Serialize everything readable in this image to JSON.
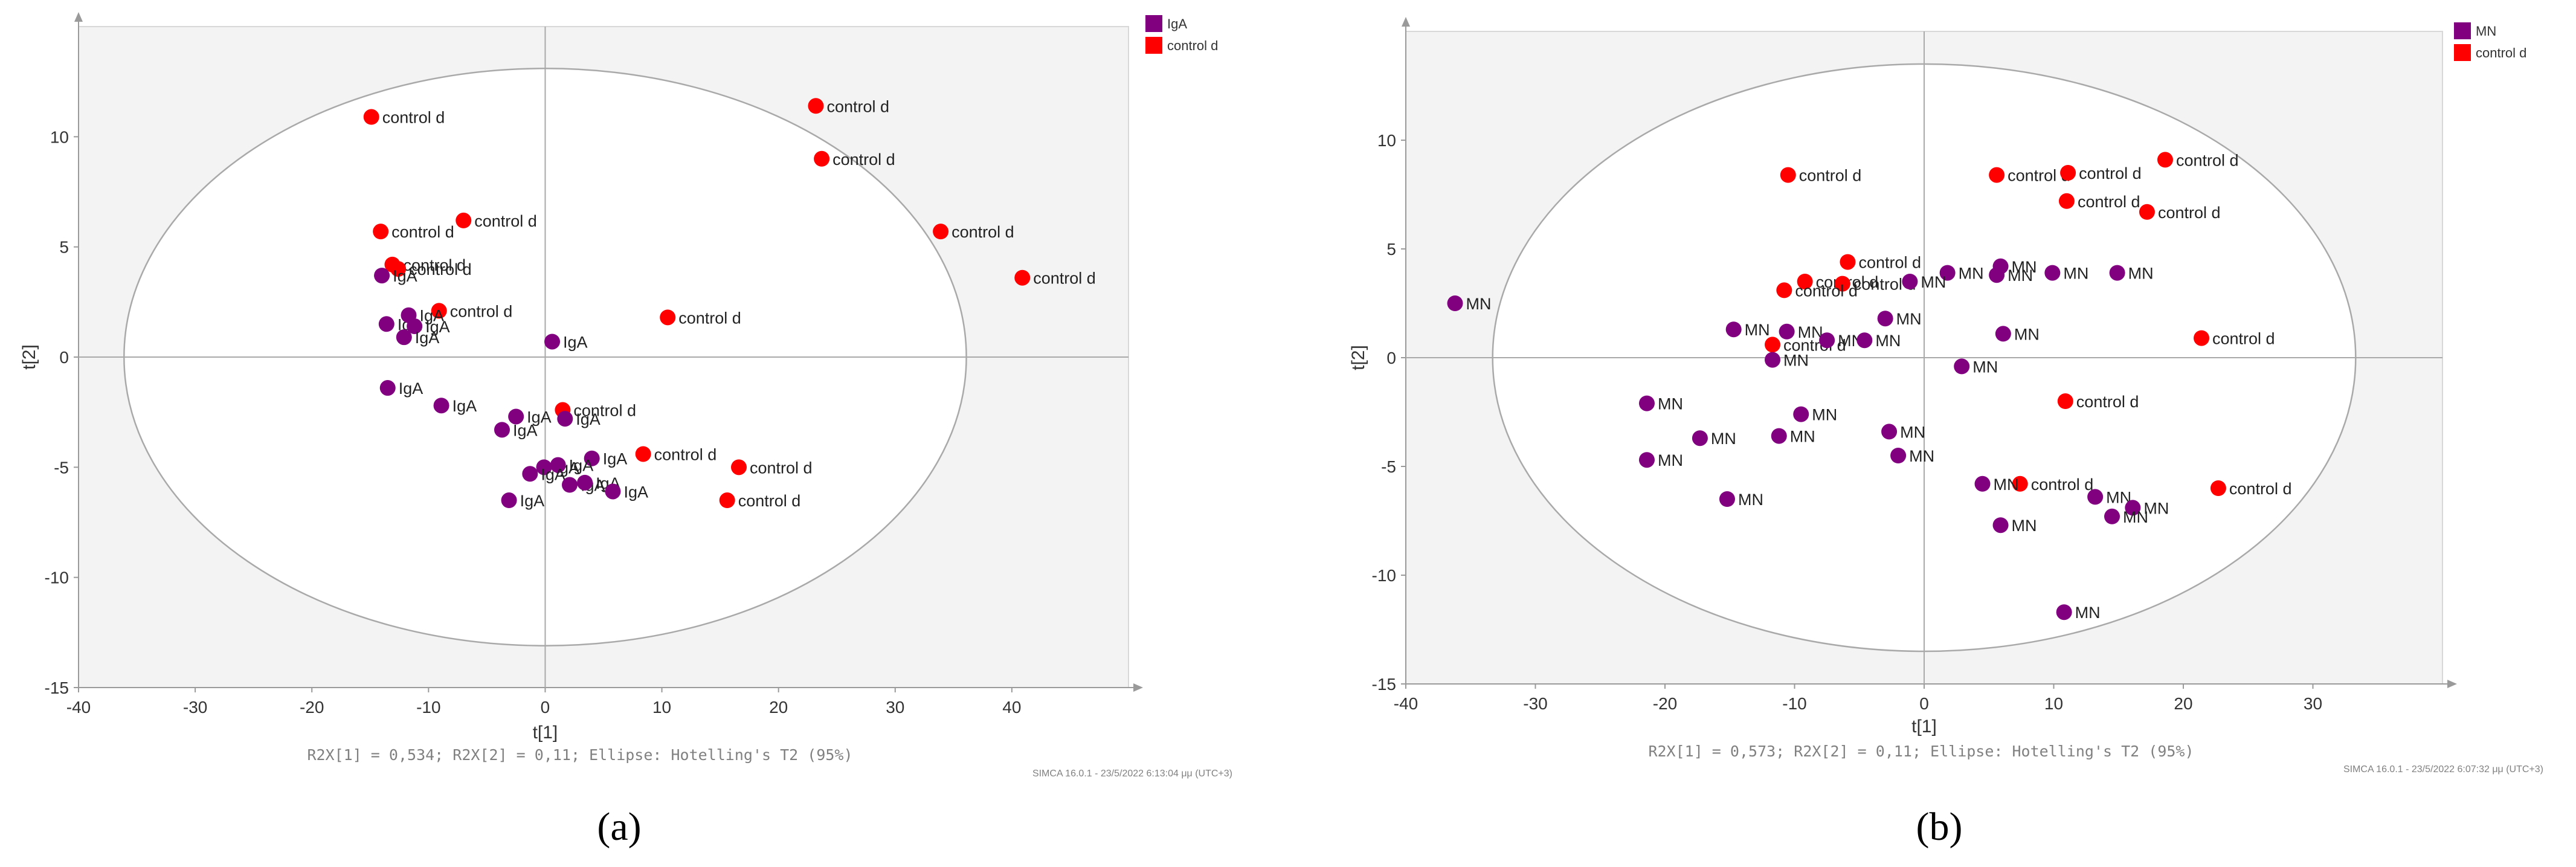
{
  "chart_data": [
    {
      "type": "scatter",
      "panel_label": "(a)",
      "xlabel": "t[1]",
      "ylabel": "t[2]",
      "xlim": [
        -40,
        50
      ],
      "ylim": [
        -15,
        15
      ],
      "xticks": [
        "-40",
        "-30",
        "-20",
        "-10",
        "0",
        "10",
        "20",
        "30",
        "40"
      ],
      "yticks": [
        "-15",
        "-10",
        "-5",
        "0",
        "5",
        "10"
      ],
      "legend": [
        {
          "name": "IgA",
          "color": "#800080"
        },
        {
          "name": "control d",
          "color": "#ff0000"
        }
      ],
      "legend_position": "top-right",
      "ellipse": {
        "cx": 0,
        "cy": 0,
        "rx": 36.1,
        "ry": 13.1
      },
      "footer": "R2X[1] = 0,534; R2X[2] = 0,11; Ellipse: Hotelling's T2 (95%)",
      "software_stamp": "SIMCA 16.0.1 - 23/5/2022 6:13:04 μμ (UTC+3)",
      "series": [
        {
          "name": "control d",
          "color": "#ff0000",
          "points": [
            {
              "x": -14.9,
              "y": 10.9,
              "label": "control d"
            },
            {
              "x": 23.2,
              "y": 11.4,
              "label": "control d"
            },
            {
              "x": 23.7,
              "y": 9.0,
              "label": "control d"
            },
            {
              "x": 33.9,
              "y": 5.7,
              "label": "control d"
            },
            {
              "x": 40.9,
              "y": 3.6,
              "label": "control d"
            },
            {
              "x": -14.1,
              "y": 5.7,
              "label": "control d"
            },
            {
              "x": -7.0,
              "y": 6.2,
              "label": "control d"
            },
            {
              "x": -13.1,
              "y": 4.2,
              "label": "control d"
            },
            {
              "x": -12.6,
              "y": 4.0,
              "label": "control d"
            },
            {
              "x": -9.1,
              "y": 2.1,
              "label": "control d"
            },
            {
              "x": 10.5,
              "y": 1.8,
              "label": "control d"
            },
            {
              "x": 1.5,
              "y": -2.4,
              "label": "control d"
            },
            {
              "x": 8.4,
              "y": -4.4,
              "label": "control d"
            },
            {
              "x": 16.6,
              "y": -5.0,
              "label": "control d"
            },
            {
              "x": 15.6,
              "y": -6.5,
              "label": "control d"
            }
          ]
        },
        {
          "name": "IgA",
          "color": "#800080",
          "points": [
            {
              "x": -14.0,
              "y": 3.7,
              "label": "IgA"
            },
            {
              "x": -13.6,
              "y": 1.5,
              "label": "IgA"
            },
            {
              "x": -11.7,
              "y": 1.9,
              "label": "IgA"
            },
            {
              "x": -11.2,
              "y": 1.4,
              "label": "IgA"
            },
            {
              "x": -12.1,
              "y": 0.9,
              "label": "IgA"
            },
            {
              "x": 0.6,
              "y": 0.7,
              "label": "IgA"
            },
            {
              "x": -13.5,
              "y": -1.4,
              "label": "IgA"
            },
            {
              "x": -8.9,
              "y": -2.2,
              "label": "IgA"
            },
            {
              "x": -2.5,
              "y": -2.7,
              "label": "IgA"
            },
            {
              "x": 1.7,
              "y": -2.8,
              "label": "IgA"
            },
            {
              "x": -3.7,
              "y": -3.3,
              "label": "IgA"
            },
            {
              "x": 4.0,
              "y": -4.6,
              "label": "IgA"
            },
            {
              "x": -0.1,
              "y": -5.0,
              "label": "IgA"
            },
            {
              "x": 1.1,
              "y": -4.9,
              "label": "IgA"
            },
            {
              "x": -1.3,
              "y": -5.3,
              "label": "IgA"
            },
            {
              "x": 2.1,
              "y": -5.8,
              "label": "IgA"
            },
            {
              "x": 3.4,
              "y": -5.7,
              "label": "IgA"
            },
            {
              "x": 5.8,
              "y": -6.1,
              "label": "IgA"
            },
            {
              "x": -3.1,
              "y": -6.5,
              "label": "IgA"
            }
          ]
        }
      ]
    },
    {
      "type": "scatter",
      "panel_label": "(b)",
      "xlabel": "t[1]",
      "ylabel": "t[2]",
      "xlim": [
        -40,
        40
      ],
      "ylim": [
        -15,
        15
      ],
      "xticks": [
        "-40",
        "-30",
        "-20",
        "-10",
        "0",
        "10",
        "20",
        "30"
      ],
      "yticks": [
        "-15",
        "-10",
        "-5",
        "0",
        "5",
        "10"
      ],
      "legend": [
        {
          "name": "MN",
          "color": "#800080"
        },
        {
          "name": "control d",
          "color": "#ff0000"
        }
      ],
      "legend_position": "top-right",
      "ellipse": {
        "cx": 0,
        "cy": 0,
        "rx": 33.3,
        "ry": 13.5
      },
      "footer": "R2X[1] = 0,573; R2X[2] = 0,11; Ellipse: Hotelling's T2 (95%)",
      "software_stamp": "SIMCA 16.0.1 - 23/5/2022 6:07:32 μμ (UTC+3)",
      "series": [
        {
          "name": "control d",
          "color": "#ff0000",
          "points": [
            {
              "x": -10.5,
              "y": 8.4,
              "label": "control d"
            },
            {
              "x": 5.6,
              "y": 8.4,
              "label": "control d"
            },
            {
              "x": 11.1,
              "y": 8.5,
              "label": "control d"
            },
            {
              "x": 18.6,
              "y": 9.1,
              "label": "control d"
            },
            {
              "x": 11.0,
              "y": 7.2,
              "label": "control d"
            },
            {
              "x": 17.2,
              "y": 6.7,
              "label": "control d"
            },
            {
              "x": -5.9,
              "y": 4.4,
              "label": "control d"
            },
            {
              "x": -9.2,
              "y": 3.5,
              "label": "control d"
            },
            {
              "x": -6.3,
              "y": 3.4,
              "label": "control d"
            },
            {
              "x": -10.8,
              "y": 3.1,
              "label": "control d"
            },
            {
              "x": -11.7,
              "y": 0.6,
              "label": "control d"
            },
            {
              "x": 21.4,
              "y": 0.9,
              "label": "control d"
            },
            {
              "x": 10.9,
              "y": -2.0,
              "label": "control d"
            },
            {
              "x": 7.4,
              "y": -5.8,
              "label": "control d"
            },
            {
              "x": 22.7,
              "y": -6.0,
              "label": "control d"
            }
          ]
        },
        {
          "name": "MN",
          "color": "#800080",
          "points": [
            {
              "x": -36.2,
              "y": 2.5,
              "label": "MN"
            },
            {
              "x": 1.8,
              "y": 3.9,
              "label": "MN"
            },
            {
              "x": 5.9,
              "y": 4.2,
              "label": "MN"
            },
            {
              "x": 5.6,
              "y": 3.8,
              "label": "MN"
            },
            {
              "x": 9.9,
              "y": 3.9,
              "label": "MN"
            },
            {
              "x": 14.9,
              "y": 3.9,
              "label": "MN"
            },
            {
              "x": -1.1,
              "y": 3.5,
              "label": "MN"
            },
            {
              "x": -3.0,
              "y": 1.8,
              "label": "MN"
            },
            {
              "x": -14.7,
              "y": 1.3,
              "label": "MN"
            },
            {
              "x": -10.6,
              "y": 1.2,
              "label": "MN"
            },
            {
              "x": -7.5,
              "y": 0.8,
              "label": "MN"
            },
            {
              "x": -4.6,
              "y": 0.8,
              "label": "MN"
            },
            {
              "x": 6.1,
              "y": 1.1,
              "label": "MN"
            },
            {
              "x": -11.7,
              "y": -0.1,
              "label": "MN"
            },
            {
              "x": 2.9,
              "y": -0.4,
              "label": "MN"
            },
            {
              "x": -21.4,
              "y": -2.1,
              "label": "MN"
            },
            {
              "x": -9.5,
              "y": -2.6,
              "label": "MN"
            },
            {
              "x": -17.3,
              "y": -3.7,
              "label": "MN"
            },
            {
              "x": -11.2,
              "y": -3.6,
              "label": "MN"
            },
            {
              "x": -2.7,
              "y": -3.4,
              "label": "MN"
            },
            {
              "x": -2.0,
              "y": -4.5,
              "label": "MN"
            },
            {
              "x": -21.4,
              "y": -4.7,
              "label": "MN"
            },
            {
              "x": 4.5,
              "y": -5.8,
              "label": "MN"
            },
            {
              "x": 13.2,
              "y": -6.4,
              "label": "MN"
            },
            {
              "x": 16.1,
              "y": -6.9,
              "label": "MN"
            },
            {
              "x": 14.5,
              "y": -7.3,
              "label": "MN"
            },
            {
              "x": -15.2,
              "y": -6.5,
              "label": "MN"
            },
            {
              "x": 5.9,
              "y": -7.7,
              "label": "MN"
            },
            {
              "x": 10.8,
              "y": -11.7,
              "label": "MN"
            }
          ]
        }
      ]
    }
  ]
}
